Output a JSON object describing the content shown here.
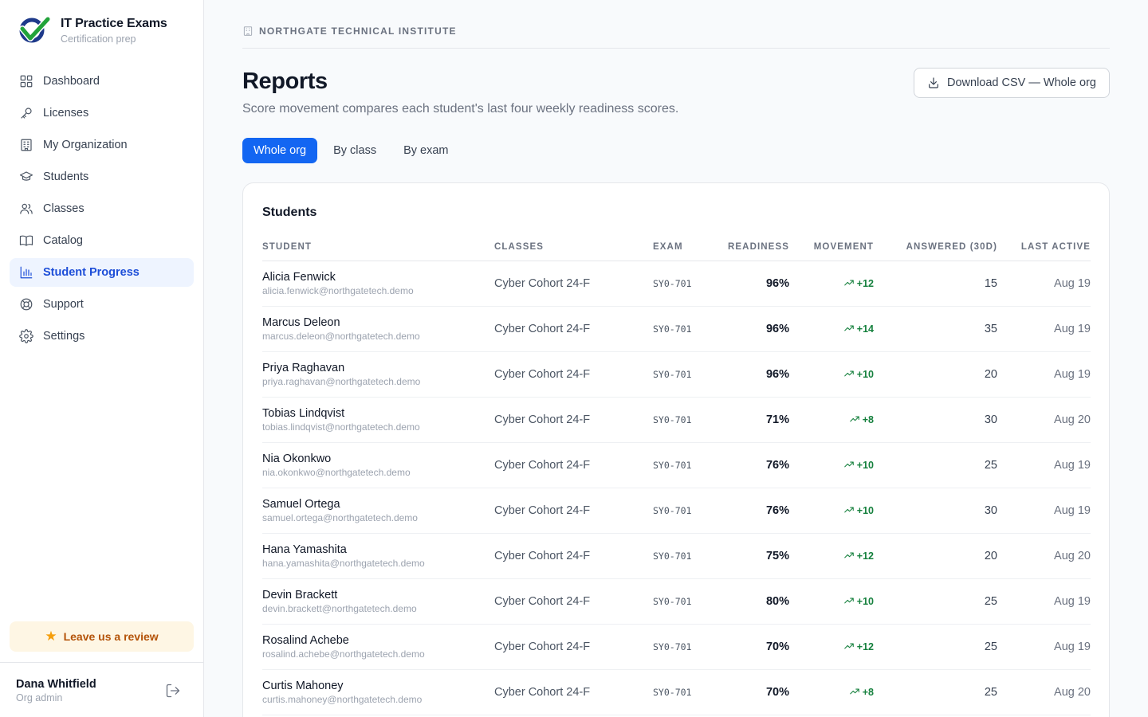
{
  "brand": {
    "title": "IT Practice Exams",
    "subtitle": "Certification prep"
  },
  "sidebar": {
    "items": [
      {
        "label": "Dashboard",
        "icon": "grid-icon",
        "active": false
      },
      {
        "label": "Licenses",
        "icon": "key-icon",
        "active": false
      },
      {
        "label": "My Organization",
        "icon": "building-icon",
        "active": false
      },
      {
        "label": "Students",
        "icon": "graduation-cap-icon",
        "active": false
      },
      {
        "label": "Classes",
        "icon": "users-icon",
        "active": false
      },
      {
        "label": "Catalog",
        "icon": "book-icon",
        "active": false
      },
      {
        "label": "Student Progress",
        "icon": "bar-chart-icon",
        "active": true
      },
      {
        "label": "Support",
        "icon": "lifebuoy-icon",
        "active": false
      },
      {
        "label": "Settings",
        "icon": "gear-icon",
        "active": false
      }
    ],
    "review_label": "Leave us a review",
    "user": {
      "name": "Dana Whitfield",
      "role": "Org admin"
    }
  },
  "header": {
    "org_name": "NORTHGATE TECHNICAL INSTITUTE",
    "title": "Reports",
    "subtitle": "Score movement compares each student's last four weekly readiness scores.",
    "download_label": "Download CSV — Whole org",
    "tabs": [
      {
        "label": "Whole org",
        "active": true
      },
      {
        "label": "By class",
        "active": false
      },
      {
        "label": "By exam",
        "active": false
      }
    ]
  },
  "table": {
    "title": "Students",
    "columns": [
      "STUDENT",
      "CLASSES",
      "EXAM",
      "READINESS",
      "MOVEMENT",
      "ANSWERED (30D)",
      "LAST ACTIVE"
    ],
    "rows": [
      {
        "name": "Alicia Fenwick",
        "email": "alicia.fenwick@northgatetech.demo",
        "class": "Cyber Cohort 24-F",
        "exam": "SY0-701",
        "readiness": "96%",
        "movement": "+12",
        "answered": "15",
        "last_active": "Aug 19"
      },
      {
        "name": "Marcus Deleon",
        "email": "marcus.deleon@northgatetech.demo",
        "class": "Cyber Cohort 24-F",
        "exam": "SY0-701",
        "readiness": "96%",
        "movement": "+14",
        "answered": "35",
        "last_active": "Aug 19"
      },
      {
        "name": "Priya Raghavan",
        "email": "priya.raghavan@northgatetech.demo",
        "class": "Cyber Cohort 24-F",
        "exam": "SY0-701",
        "readiness": "96%",
        "movement": "+10",
        "answered": "20",
        "last_active": "Aug 19"
      },
      {
        "name": "Tobias Lindqvist",
        "email": "tobias.lindqvist@northgatetech.demo",
        "class": "Cyber Cohort 24-F",
        "exam": "SY0-701",
        "readiness": "71%",
        "movement": "+8",
        "answered": "30",
        "last_active": "Aug 20"
      },
      {
        "name": "Nia Okonkwo",
        "email": "nia.okonkwo@northgatetech.demo",
        "class": "Cyber Cohort 24-F",
        "exam": "SY0-701",
        "readiness": "76%",
        "movement": "+10",
        "answered": "25",
        "last_active": "Aug 19"
      },
      {
        "name": "Samuel Ortega",
        "email": "samuel.ortega@northgatetech.demo",
        "class": "Cyber Cohort 24-F",
        "exam": "SY0-701",
        "readiness": "76%",
        "movement": "+10",
        "answered": "30",
        "last_active": "Aug 19"
      },
      {
        "name": "Hana Yamashita",
        "email": "hana.yamashita@northgatetech.demo",
        "class": "Cyber Cohort 24-F",
        "exam": "SY0-701",
        "readiness": "75%",
        "movement": "+12",
        "answered": "20",
        "last_active": "Aug 20"
      },
      {
        "name": "Devin Brackett",
        "email": "devin.brackett@northgatetech.demo",
        "class": "Cyber Cohort 24-F",
        "exam": "SY0-701",
        "readiness": "80%",
        "movement": "+10",
        "answered": "25",
        "last_active": "Aug 19"
      },
      {
        "name": "Rosalind Achebe",
        "email": "rosalind.achebe@northgatetech.demo",
        "class": "Cyber Cohort 24-F",
        "exam": "SY0-701",
        "readiness": "70%",
        "movement": "+12",
        "answered": "25",
        "last_active": "Aug 19"
      },
      {
        "name": "Curtis Mahoney",
        "email": "curtis.mahoney@northgatetech.demo",
        "class": "Cyber Cohort 24-F",
        "exam": "SY0-701",
        "readiness": "70%",
        "movement": "+8",
        "answered": "25",
        "last_active": "Aug 20"
      }
    ]
  },
  "colors": {
    "accent": "#1366f2",
    "active_nav_bg": "#eef4ff",
    "positive": "#15803d",
    "review_bg": "#fef6e4",
    "review_text": "#b45309"
  }
}
